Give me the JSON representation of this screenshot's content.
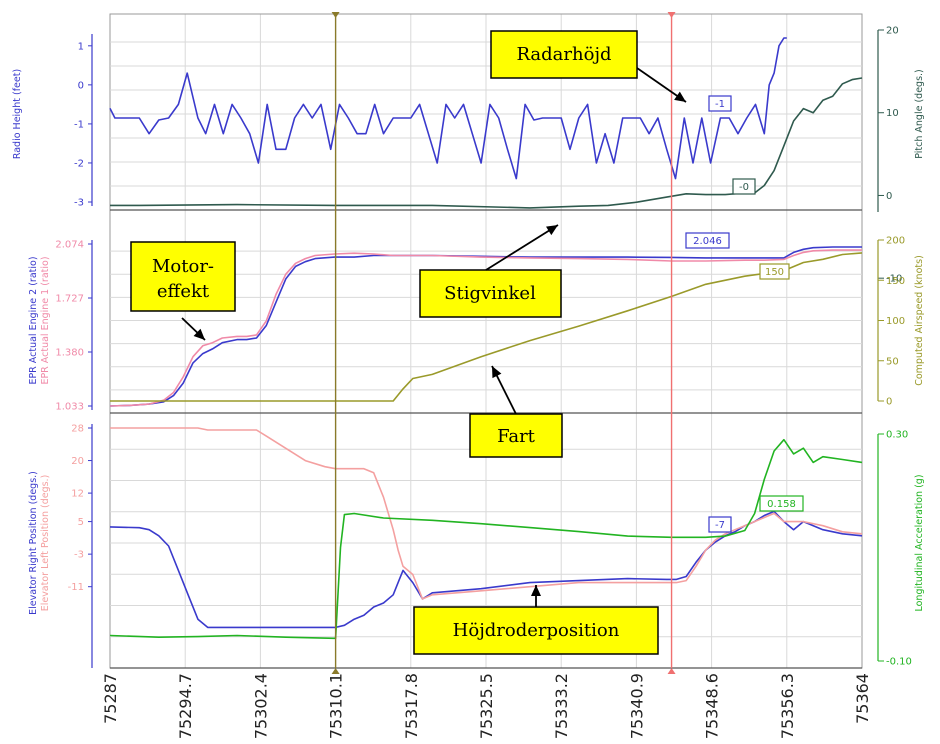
{
  "colors": {
    "grid": "#d9d9d9",
    "radio": "#3a3acc",
    "pitch": "#2f5a4e",
    "epr2": "#3a3acc",
    "epr1": "#f08aa8",
    "airspeed": "#9a9a2a",
    "elevR": "#3a3acc",
    "elevL": "#f4a0a0",
    "accel": "#22b422",
    "cursor1": "#8a7a2a",
    "cursor2": "#f07070",
    "callout": "#ffff00"
  },
  "chart_data": {
    "type": "line",
    "x_ticks": [
      "75287",
      "75294.7",
      "75302.4",
      "75310.1",
      "75317.8",
      "75325.5",
      "75333.2",
      "75340.9",
      "75348.6",
      "75356.3",
      "75364"
    ],
    "xlim": [
      75287,
      75364
    ],
    "cursors": [
      75310.1,
      75344.5
    ],
    "panels": [
      {
        "left_axis": {
          "label": "Radio Height (feet)",
          "ticks": [
            "1",
            "0",
            "-1",
            "-2",
            "-3"
          ],
          "ylim": [
            -3,
            1.2
          ]
        },
        "right_axis": {
          "label": "Pitch Angle (degs.)",
          "ticks": [
            "20",
            "10",
            "0",
            "-10"
          ],
          "ylim": [
            -2,
            20
          ]
        },
        "series": [
          {
            "name": "Radio Height",
            "axis": "left",
            "x": [
              75287,
              75287.5,
              75288,
              75290,
              75291,
              75292,
              75293,
              75294,
              75294.9,
              75296,
              75296.8,
              75297.7,
              75298.6,
              75299.5,
              75300.4,
              75301.3,
              75302.2,
              75303.1,
              75304,
              75305,
              75305.9,
              75306.8,
              75307.7,
              75308.6,
              75309.6,
              75310.5,
              75311.4,
              75312.3,
              75313.2,
              75314.1,
              75315,
              75316,
              75316.9,
              75317.8,
              75318.7,
              75319.6,
              75320.5,
              75321.4,
              75322.3,
              75323.2,
              75324.1,
              75325,
              75325.9,
              75326.8,
              75327.7,
              75328.6,
              75329.5,
              75330.4,
              75331.3,
              75332.2,
              75333.2,
              75334.1,
              75335,
              75335.9,
              75336.8,
              75337.7,
              75338.6,
              75339.5,
              75340.4,
              75341.3,
              75342.2,
              75343.1,
              75344,
              75344.9,
              75345.8,
              75346.7,
              75347.6,
              75348.5,
              75349.5,
              75350.4,
              75351.3,
              75352.2,
              75353.1,
              75354,
              75354.5,
              75355,
              75355.5,
              75356,
              75356.3
            ],
            "values": [
              -0.6,
              -0.85,
              -0.85,
              -0.85,
              -1.25,
              -0.9,
              -0.85,
              -0.5,
              0.3,
              -0.85,
              -1.25,
              -0.5,
              -1.25,
              -0.5,
              -0.85,
              -1.25,
              -2.0,
              -0.5,
              -1.65,
              -1.65,
              -0.85,
              -0.5,
              -0.85,
              -0.5,
              -1.65,
              -0.5,
              -0.85,
              -1.25,
              -1.25,
              -0.5,
              -1.25,
              -0.85,
              -0.85,
              -0.85,
              -0.5,
              -1.25,
              -2.0,
              -0.5,
              -0.85,
              -0.5,
              -1.25,
              -2.0,
              -0.5,
              -0.85,
              -1.65,
              -2.4,
              -0.5,
              -0.9,
              -0.85,
              -0.85,
              -0.85,
              -1.65,
              -0.85,
              -0.5,
              -2.0,
              -1.25,
              -2.0,
              -0.85,
              -0.85,
              -0.85,
              -1.25,
              -0.85,
              -1.65,
              -2.4,
              -0.85,
              -2.0,
              -0.85,
              -2.0,
              -0.85,
              -0.85,
              -1.25,
              -0.85,
              -0.5,
              -1.25,
              0,
              0.3,
              1.0,
              1.2,
              1.2
            ]
          },
          {
            "name": "Pitch Angle",
            "axis": "right",
            "x": [
              75287,
              75290,
              75300,
              75310,
              75320,
              75330,
              75335,
              75338,
              75341,
              75344,
              75346,
              75348,
              75350,
              75352,
              75353,
              75354,
              75355,
              75356,
              75357,
              75358,
              75359,
              75360,
              75361,
              75362,
              75363,
              75364
            ],
            "values": [
              -1.2,
              -1.2,
              -1.1,
              -1.2,
              -1.2,
              -1.5,
              -1.3,
              -1.2,
              -0.8,
              -0.2,
              0.2,
              0.1,
              0.1,
              0.3,
              0.3,
              1.2,
              3.0,
              6.0,
              9.0,
              10.5,
              10.0,
              11.5,
              12.0,
              13.5,
              14.0,
              14.2
            ]
          }
        ],
        "cursor_labels": {
          "left": "-1",
          "right": "-0"
        }
      },
      {
        "left_axis": {
          "label": "EPR Actual Engine 2 (ratio)",
          "label2": "EPR Actual Engine 1 (ratio)",
          "ticks": [
            "2.074",
            "1.727",
            "1.380",
            "1.033"
          ],
          "ylim": [
            1.033,
            2.074
          ]
        },
        "right_axis": {
          "label": "Computed Airspeed (knots)",
          "ticks": [
            "200",
            "150",
            "100",
            "50",
            "0"
          ],
          "ylim": [
            0,
            200
          ]
        },
        "series": [
          {
            "name": "EPR Actual Engine 2",
            "axis": "left",
            "x": [
              75287,
              75289,
              75291,
              75292.5,
              75293.5,
              75294.5,
              75295.5,
              75296.5,
              75297.5,
              75298.5,
              75300,
              75301,
              75302,
              75303,
              75304,
              75305,
              75306,
              75307,
              75308,
              75310,
              75312,
              75314,
              75316,
              75320,
              75325,
              75330,
              75335,
              75340,
              75344.5,
              75348,
              75352,
              75354,
              75356,
              75357,
              75358,
              75359,
              75361,
              75364
            ],
            "values": [
              1.033,
              1.037,
              1.045,
              1.06,
              1.1,
              1.18,
              1.31,
              1.37,
              1.4,
              1.44,
              1.46,
              1.46,
              1.47,
              1.55,
              1.7,
              1.85,
              1.93,
              1.96,
              1.98,
              1.99,
              1.99,
              2.0,
              2.0,
              2.0,
              1.995,
              1.99,
              1.99,
              1.99,
              1.988,
              1.985,
              1.985,
              1.985,
              1.985,
              2.02,
              2.04,
              2.05,
              2.055,
              2.055
            ]
          },
          {
            "name": "EPR Actual Engine 1",
            "axis": "left",
            "x": [
              75287,
              75289,
              75291,
              75292.5,
              75293.5,
              75294.5,
              75295.5,
              75296.5,
              75297.5,
              75298.5,
              75300,
              75301,
              75302,
              75303,
              75304,
              75305,
              75306,
              75307,
              75308,
              75310,
              75312,
              75314,
              75316,
              75320,
              75325,
              75330,
              75335,
              75340,
              75344.5,
              75348,
              75352,
              75354,
              75356,
              75357,
              75358,
              75359,
              75361,
              75364
            ],
            "values": [
              1.033,
              1.037,
              1.045,
              1.07,
              1.12,
              1.22,
              1.35,
              1.42,
              1.44,
              1.47,
              1.48,
              1.48,
              1.49,
              1.58,
              1.75,
              1.88,
              1.95,
              1.98,
              2.0,
              2.01,
              2.015,
              2.01,
              2.0,
              2.0,
              1.99,
              1.985,
              1.98,
              1.975,
              1.965,
              1.965,
              1.97,
              1.97,
              1.975,
              2.0,
              2.02,
              2.03,
              2.035,
              2.035
            ]
          },
          {
            "name": "Computed Airspeed",
            "axis": "right",
            "x": [
              75287,
              75300,
              75310,
              75316,
              75317,
              75318,
              75320,
              75325,
              75330,
              75335,
              75340,
              75344.5,
              75348,
              75352,
              75355,
              75356,
              75358,
              75360,
              75362,
              75364
            ],
            "values": [
              0,
              0,
              0,
              0,
              15,
              28,
              33,
              55,
              75,
              93,
              112,
              130,
              145,
              155,
              160,
              162,
              172,
              176,
              182,
              184
            ]
          }
        ],
        "cursor_labels": {
          "left": "2.046",
          "right": "150"
        }
      },
      {
        "left_axis": {
          "label": "Elevator Right Position (degs.)",
          "label2": "Elevator Left Position (degs.)",
          "ticks": [
            "28",
            "20",
            "12",
            "5",
            "-3",
            "-11"
          ],
          "ylim": [
            -30,
            28
          ]
        },
        "right_axis": {
          "label": "Longitudinal Acceleration (g)",
          "ticks": [
            "0.30",
            "-0.10"
          ],
          "ylim": [
            -0.1,
            0.3
          ]
        },
        "series": [
          {
            "name": "Elevator Right Position",
            "axis": "left",
            "x": [
              75287,
              75290,
              75291,
              75292,
              75293,
              75294,
              75295,
              75296,
              75297,
              75298,
              75300,
              75303,
              75306,
              75309,
              75310.1,
              75311,
              75312,
              75313,
              75314,
              75315,
              75316,
              75316.5,
              75317,
              75318,
              75319,
              75320,
              75325,
              75330,
              75335,
              75340,
              75344,
              75344.5,
              75345,
              75346,
              75347,
              75348,
              75349,
              75350,
              75351,
              75352,
              75353,
              75354,
              75355,
              75356,
              75357,
              75358,
              75360,
              75362,
              75364
            ],
            "values": [
              3.7,
              3.5,
              3.0,
              1.5,
              -1.0,
              -7.0,
              -13.0,
              -19.0,
              -21.0,
              -21.0,
              -21.0,
              -21.0,
              -21.0,
              -21.0,
              -21.0,
              -20.5,
              -19.0,
              -18.0,
              -16.0,
              -15.0,
              -13.0,
              -10.0,
              -7.0,
              -10.0,
              -14.0,
              -12.5,
              -11.5,
              -10.0,
              -9.5,
              -9.0,
              -9.2,
              -9.2,
              -9.2,
              -8.5,
              -5.0,
              -2.0,
              0,
              1.5,
              2.5,
              4.0,
              5.0,
              6.5,
              7.5,
              5.0,
              3.0,
              5.0,
              3.0,
              2.0,
              1.5
            ]
          },
          {
            "name": "Elevator Left Position",
            "axis": "left",
            "x": [
              75287,
              75295,
              75296,
              75297,
              75298,
              75300,
              75302,
              75303,
              75305,
              75307,
              75309,
              75310.1,
              75312,
              75313,
              75314,
              75315,
              75316,
              75316.5,
              75317,
              75318,
              75319,
              75320,
              75325,
              75330,
              75335,
              75340,
              75344,
              75344.5,
              75345,
              75346,
              75347,
              75348,
              75349,
              75350,
              75351,
              75352,
              75353,
              75354,
              75355,
              75356,
              75357,
              75358,
              75360,
              75362,
              75364
            ],
            "values": [
              28,
              28,
              28,
              27.5,
              27.5,
              27.5,
              27.5,
              26,
              23,
              20,
              18.5,
              18,
              18,
              18,
              17,
              11,
              3,
              -2,
              -6,
              -8,
              -14,
              -13,
              -12,
              -11,
              -10,
              -10,
              -10,
              -10,
              -10,
              -9.5,
              -6,
              -2,
              0.5,
              2,
              3,
              4,
              5,
              6,
              7,
              5,
              5,
              5,
              4,
              2.5,
              2
            ]
          },
          {
            "name": "Longitudinal Acceleration",
            "axis": "right",
            "x": [
              75287,
              75292,
              75296,
              75300,
              75305,
              75309.9,
              75310.1,
              75310.6,
              75311,
              75312,
              75315,
              75320,
              75325,
              75330,
              75335,
              75340,
              75344.5,
              75348,
              75350,
              75352,
              75353,
              75354,
              75355,
              75356,
              75357,
              75358,
              75359,
              75360,
              75362,
              75364
            ],
            "values": [
              -0.055,
              -0.058,
              -0.057,
              -0.055,
              -0.058,
              -0.06,
              -0.06,
              0.1,
              0.158,
              0.16,
              0.152,
              0.148,
              0.142,
              0.135,
              0.128,
              0.12,
              0.118,
              0.118,
              0.12,
              0.13,
              0.16,
              0.22,
              0.27,
              0.29,
              0.265,
              0.275,
              0.25,
              0.26,
              0.255,
              0.25
            ]
          }
        ],
        "cursor_labels": {
          "left": "-7",
          "right": "0.158"
        }
      }
    ],
    "annotations": [
      "Radarhöjd",
      "Motor-effekt",
      "Stigvinkel",
      "Fart",
      "Höjdroderposition"
    ]
  },
  "callouts": {
    "radarhojd": "Radarhöjd",
    "motor1": "Motor-",
    "motor2": "effekt",
    "stigvinkel": "Stigvinkel",
    "fart": "Fart",
    "hojdroder": "Höjdroderposition"
  }
}
